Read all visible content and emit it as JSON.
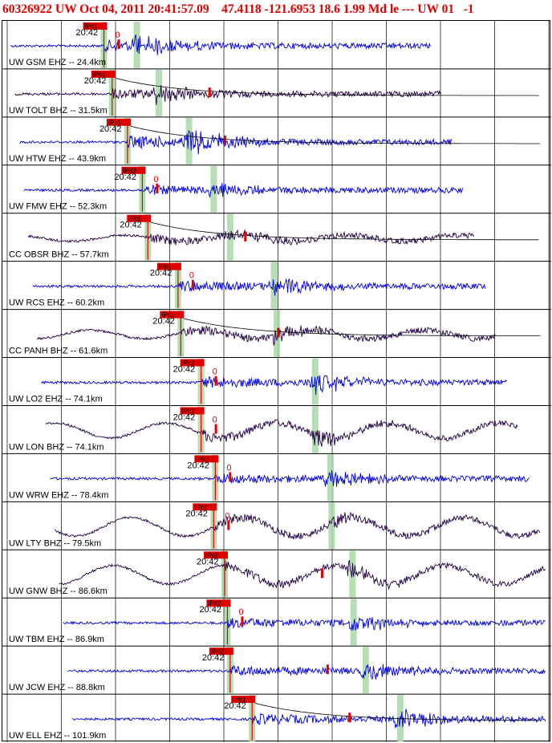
{
  "header": {
    "event_id": "60326922",
    "network": "UW",
    "datetime": "Oct 04, 2011 20:41:57.09",
    "latitude": "47.4118",
    "longitude": "-121.6953",
    "depth": "18.6",
    "magnitude": "1.99",
    "mag_type": "Md",
    "etype": "le",
    "sep": "---",
    "region": "UW",
    "version": "01",
    "extra": "-1"
  },
  "chart_data": {
    "type": "line",
    "time_label": "20:42",
    "traces": [
      {
        "label": "UW GSM EHZ -- 24.4km",
        "color": "#0000e0",
        "pick": "IPc1",
        "p": 0.185,
        "s": 0.245,
        "amp": 0.55,
        "style": "hf",
        "zero": true,
        "coda": false,
        "drift": 0
      },
      {
        "label": "UW TOLT BHZ -- 31.5km",
        "color": "#220044",
        "pick": "IPc1",
        "p": 0.2,
        "s": 0.285,
        "amp": 0.45,
        "style": "hf",
        "zero": false,
        "coda": true,
        "drift": 0
      },
      {
        "label": "UW HTW EHZ -- 43.9km",
        "color": "#0000e0",
        "pick": "IPc1",
        "p": 0.228,
        "s": 0.34,
        "amp": 0.7,
        "style": "hf",
        "zero": false,
        "coda": true,
        "drift": 0
      },
      {
        "label": "UW FMW EHZ -- 52.3km",
        "color": "#0000e0",
        "pick": "IPd2",
        "p": 0.255,
        "s": 0.385,
        "amp": 0.4,
        "style": "hf",
        "zero": true,
        "coda": false,
        "drift": 0
      },
      {
        "label": "CC OBSR BHZ -- 57.7km",
        "color": "#220044",
        "pick": "IPc2",
        "p": 0.265,
        "s": 0.415,
        "amp": 0.35,
        "style": "wave",
        "zero": false,
        "coda": true,
        "drift": 0.18
      },
      {
        "label": "UW RCS EHZ -- 60.2km",
        "color": "#0000e0",
        "pick": "IPc1",
        "p": 0.32,
        "s": 0.495,
        "amp": 0.55,
        "style": "hf",
        "zero": true,
        "coda": false,
        "drift": 0
      },
      {
        "label": "CC PANH BHZ -- 61.6km",
        "color": "#220044",
        "pick": "IPc1",
        "p": 0.325,
        "s": 0.5,
        "amp": 0.4,
        "style": "wave",
        "zero": false,
        "coda": true,
        "drift": 0.25
      },
      {
        "label": "UW LO2 EHZ -- 74.1km",
        "color": "#0000e0",
        "pick": "IPc2",
        "p": 0.362,
        "s": 0.57,
        "amp": 0.55,
        "style": "hf",
        "zero": true,
        "coda": false,
        "drift": 0
      },
      {
        "label": "UW LON BHZ -- 74.1km",
        "color": "#220044",
        "pick": "IPc2",
        "p": 0.362,
        "s": 0.57,
        "amp": 0.5,
        "style": "wave",
        "zero": true,
        "coda": false,
        "drift": 0.45
      },
      {
        "label": "UW WRW EHZ -- 78.4km",
        "color": "#0000e0",
        "pick": "IPd2",
        "p": 0.388,
        "s": 0.598,
        "amp": 0.45,
        "style": "hf",
        "zero": true,
        "coda": false,
        "drift": 0
      },
      {
        "label": "UW LTY BHZ -- 79.5km",
        "color": "#220044",
        "pick": "IPc2",
        "p": 0.385,
        "s": 0.6,
        "amp": 0.4,
        "style": "wave",
        "zero": true,
        "coda": false,
        "drift": 0.55
      },
      {
        "label": "UW GNW BHZ -- 86.6km",
        "color": "#220044",
        "pick": "IPc2",
        "p": 0.405,
        "s": 0.638,
        "amp": 0.45,
        "style": "wave",
        "zero": false,
        "coda": false,
        "drift": 0.55
      },
      {
        "label": "UW TBM EHZ -- 86.9km",
        "color": "#0000e0",
        "pick": "IPc2",
        "p": 0.41,
        "s": 0.64,
        "amp": 0.45,
        "style": "hf",
        "zero": true,
        "coda": false,
        "drift": 0
      },
      {
        "label": "UW JCW EHZ -- 88.8km",
        "color": "#0000e0",
        "pick": "IPd2",
        "p": 0.415,
        "s": 0.662,
        "amp": 0.5,
        "style": "hf",
        "zero": false,
        "coda": false,
        "drift": 0
      },
      {
        "label": "UW ELL EHZ -- 101.9km",
        "color": "#0000e0",
        "pick": "IPd1",
        "p": 0.455,
        "s": 0.725,
        "amp": 0.55,
        "style": "hf",
        "zero": false,
        "coda": true,
        "drift": 0
      }
    ]
  }
}
